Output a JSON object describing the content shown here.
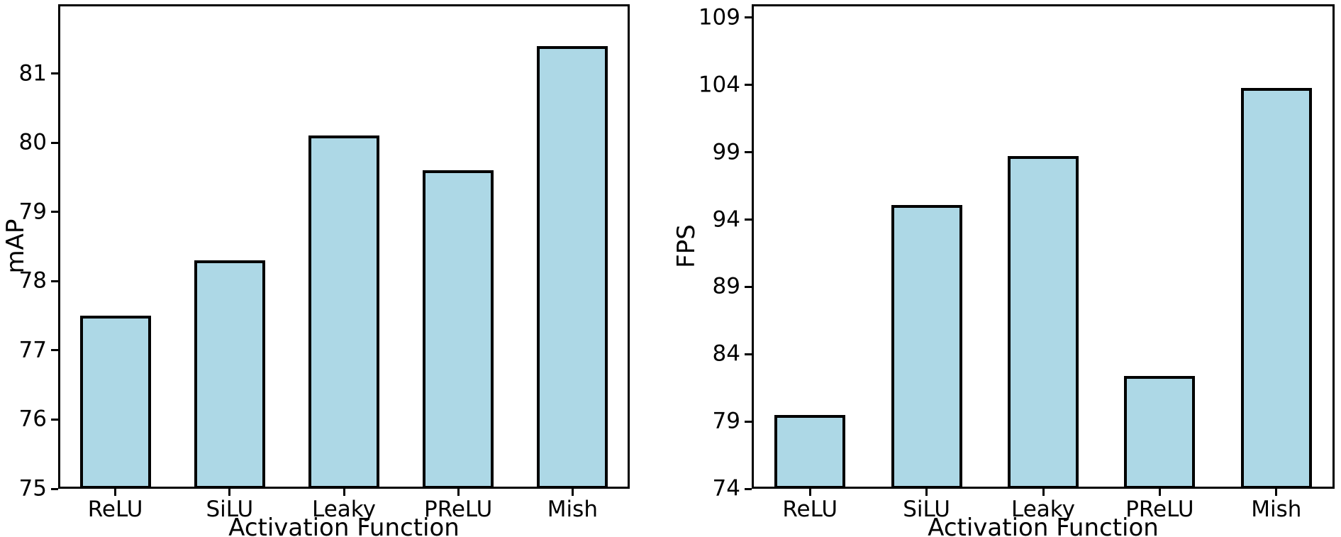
{
  "chart_data": [
    {
      "type": "bar",
      "title": "",
      "xlabel": "Activation Function",
      "ylabel": "mAP",
      "categories": [
        "ReLU",
        "SiLU",
        "Leaky",
        "PReLU",
        "Mish"
      ],
      "values": [
        77.5,
        78.3,
        80.1,
        79.6,
        81.4
      ],
      "ylim": [
        75,
        82
      ],
      "yticks": [
        75,
        76,
        77,
        78,
        79,
        80,
        81
      ],
      "grid": false,
      "legend": false,
      "bar_color": "#ADD8E6",
      "bar_edge_color": "#000000"
    },
    {
      "type": "bar",
      "title": "",
      "xlabel": "Activation Function",
      "ylabel": "FPS",
      "categories": [
        "ReLU",
        "SiLU",
        "Leaky",
        "PReLU",
        "Mish"
      ],
      "values": [
        79.5,
        95.1,
        98.7,
        82.4,
        103.8
      ],
      "ylim": [
        74,
        110
      ],
      "yticks": [
        74,
        79,
        84,
        89,
        94,
        99,
        104,
        109
      ],
      "grid": false,
      "legend": false,
      "bar_color": "#ADD8E6",
      "bar_edge_color": "#000000"
    }
  ]
}
